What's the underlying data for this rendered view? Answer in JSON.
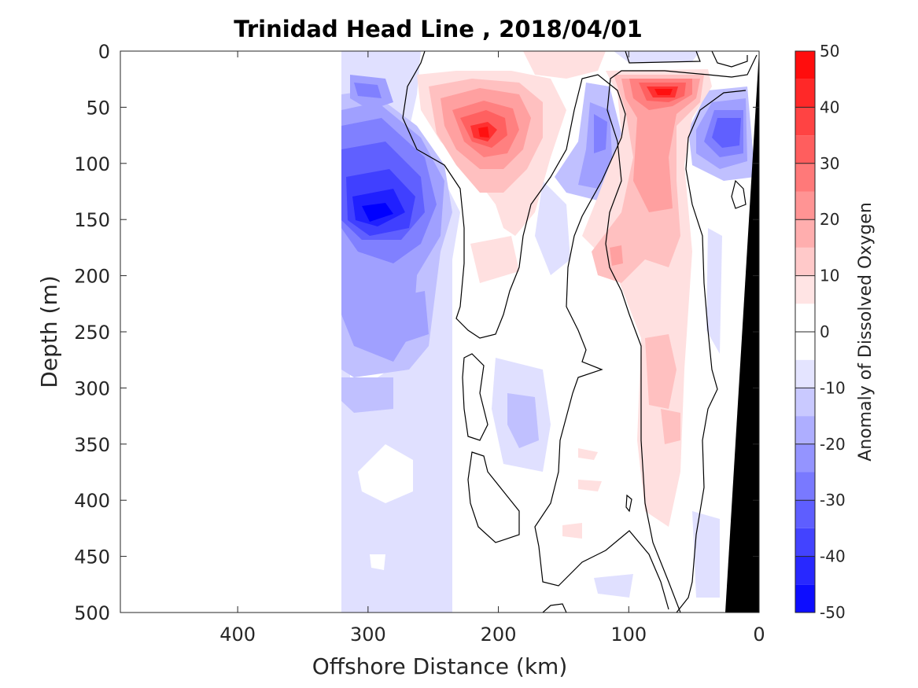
{
  "chart_data": {
    "type": "heatmap",
    "title": "Trinidad Head Line , 2018/04/01",
    "xlabel": "Offshore Distance (km)",
    "ylabel": "Depth (m)",
    "xlim": [
      490,
      0
    ],
    "ylim": [
      0,
      500
    ],
    "x_reversed": true,
    "y_reversed": true,
    "xticks": [
      "400",
      "300",
      "200",
      "100",
      "0"
    ],
    "yticks": [
      "0",
      "50",
      "100",
      "150",
      "200",
      "250",
      "300",
      "350",
      "400",
      "450",
      "500"
    ],
    "data_extent_km": [
      320,
      0
    ],
    "colorbar": {
      "label": "Anomaly of Dissolved Oxygen",
      "range": [
        -50,
        50
      ],
      "step": 5,
      "ticks": [
        "50",
        "40",
        "30",
        "20",
        "10",
        "0",
        "-10",
        "-20",
        "-30",
        "-40",
        "-50"
      ],
      "low_color": "#0000ff",
      "mid_color": "#ffffff",
      "high_color": "#ff0000"
    },
    "features": [
      {
        "label": "negative anomaly core",
        "distance_km": 290,
        "depth_m": 145,
        "value": -45
      },
      {
        "label": "negative anomaly",
        "distance_km": 295,
        "depth_m": 35,
        "value": -15
      },
      {
        "label": "negative anomaly",
        "distance_km": 265,
        "depth_m": 240,
        "value": -20
      },
      {
        "label": "positive anomaly core",
        "distance_km": 212,
        "depth_m": 75,
        "value": 40
      },
      {
        "label": "positive anomaly core",
        "distance_km": 75,
        "depth_m": 40,
        "value": 45
      },
      {
        "label": "positive anomaly",
        "distance_km": 80,
        "depth_m": 130,
        "value": 20
      },
      {
        "label": "negative anomaly",
        "distance_km": 140,
        "depth_m": 100,
        "value": -20
      },
      {
        "label": "negative anomaly",
        "distance_km": 30,
        "depth_m": 80,
        "value": -30
      }
    ],
    "bathymetry_color": "#000000",
    "zero_contour_color": "#000000"
  }
}
